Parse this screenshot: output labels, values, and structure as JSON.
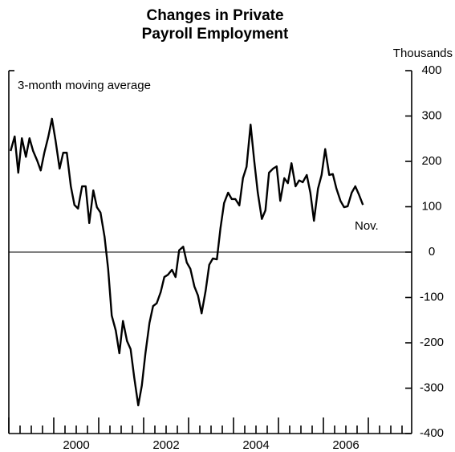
{
  "chart_data": {
    "type": "line",
    "title": [
      "Changes in Private",
      "Payroll Employment"
    ],
    "y_label": "Thousands",
    "annotations": [
      "3-month moving average",
      "Nov."
    ],
    "reference_line": 0,
    "xlim": [
      1999,
      2008
    ],
    "xticks": [
      {
        "value": 2000.5,
        "label": "2000"
      },
      {
        "value": 2002.5,
        "label": "2002"
      },
      {
        "value": 2004.5,
        "label": "2004"
      },
      {
        "value": 2006.5,
        "label": "2006"
      }
    ],
    "ylim": [
      -400,
      400
    ],
    "yticks": [
      -400,
      -300,
      -200,
      -100,
      0,
      100,
      200,
      300,
      400
    ],
    "x": [
      1999.04,
      1999.13,
      1999.21,
      1999.29,
      1999.38,
      1999.46,
      1999.54,
      1999.63,
      1999.71,
      1999.79,
      1999.88,
      1999.96,
      2000.04,
      2000.13,
      2000.21,
      2000.29,
      2000.38,
      2000.46,
      2000.54,
      2000.63,
      2000.71,
      2000.79,
      2000.88,
      2000.96,
      2001.04,
      2001.13,
      2001.21,
      2001.29,
      2001.38,
      2001.46,
      2001.54,
      2001.63,
      2001.71,
      2001.79,
      2001.88,
      2001.96,
      2002.04,
      2002.13,
      2002.21,
      2002.29,
      2002.38,
      2002.46,
      2002.54,
      2002.63,
      2002.71,
      2002.79,
      2002.88,
      2002.96,
      2003.04,
      2003.13,
      2003.21,
      2003.29,
      2003.38,
      2003.46,
      2003.54,
      2003.63,
      2003.71,
      2003.79,
      2003.88,
      2003.96,
      2004.04,
      2004.13,
      2004.21,
      2004.29,
      2004.38,
      2004.46,
      2004.54,
      2004.63,
      2004.71,
      2004.79,
      2004.88,
      2004.96,
      2005.04,
      2005.13,
      2005.21,
      2005.29,
      2005.38,
      2005.46,
      2005.54,
      2005.63,
      2005.71,
      2005.79,
      2005.88,
      2005.96,
      2006.04,
      2006.13,
      2006.21,
      2006.29,
      2006.38,
      2006.46,
      2006.54,
      2006.63,
      2006.71,
      2006.79,
      2006.88
    ],
    "series": [
      {
        "color": "#000000",
        "values": [
          223,
          255,
          175,
          251,
          210,
          251,
          223,
          202,
          180,
          219,
          255,
          294,
          246,
          184,
          219,
          219,
          145,
          104,
          96,
          145,
          145,
          64,
          136,
          99,
          87,
          34,
          -37,
          -140,
          -173,
          -223,
          -152,
          -196,
          -214,
          -276,
          -338,
          -294,
          -223,
          -156,
          -119,
          -113,
          -88,
          -55,
          -50,
          -39,
          -55,
          4,
          12,
          -23,
          -37,
          -76,
          -96,
          -135,
          -85,
          -28,
          -14,
          -16,
          53,
          108,
          131,
          117,
          117,
          103,
          163,
          188,
          281,
          202,
          131,
          73,
          92,
          175,
          184,
          189,
          113,
          163,
          152,
          196,
          145,
          158,
          154,
          170,
          131,
          69,
          140,
          170,
          227,
          170,
          172,
          140,
          113,
          99,
          101,
          131,
          145,
          127,
          104
        ]
      }
    ]
  }
}
